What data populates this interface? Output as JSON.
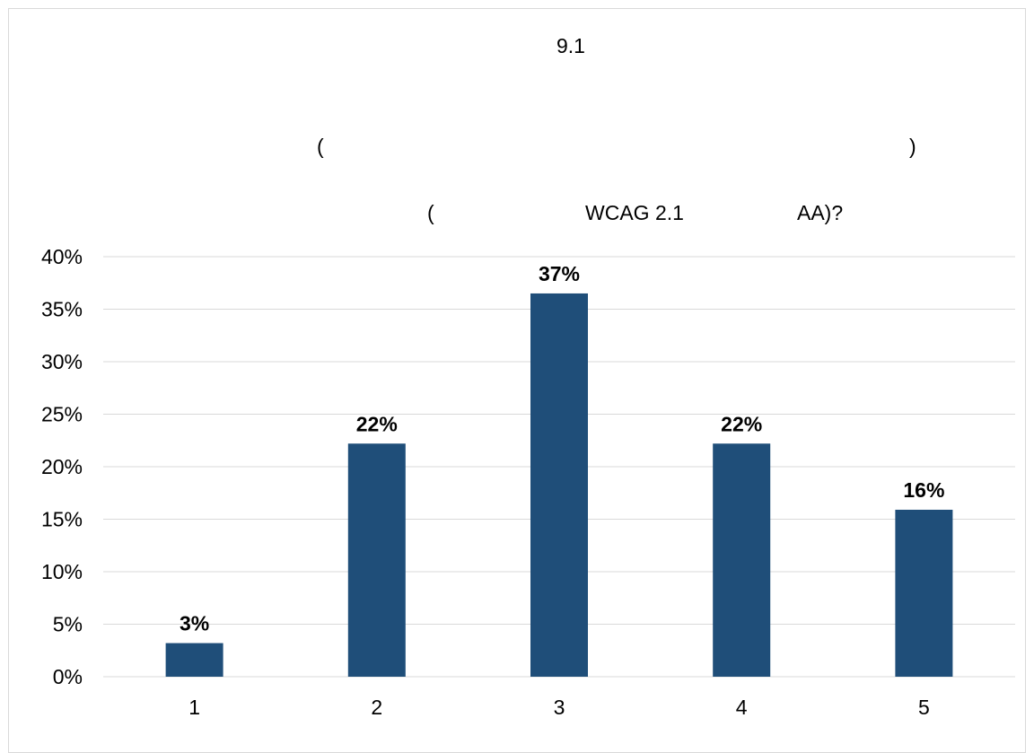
{
  "chart_data": {
    "type": "bar",
    "title": {
      "line1": "9.1",
      "line2_open": "(",
      "line2_close": ")",
      "line3_open": "(",
      "line3_mid": "WCAG 2.1",
      "line3_end": "AA)?"
    },
    "categories": [
      "1",
      "2",
      "3",
      "4",
      "5"
    ],
    "values": [
      3.2,
      22.2,
      36.5,
      22.2,
      15.9
    ],
    "data_labels": [
      "3%",
      "22%",
      "37%",
      "22%",
      "16%"
    ],
    "ylim": [
      0,
      40
    ],
    "yticks": [
      "0%",
      "5%",
      "10%",
      "15%",
      "20%",
      "25%",
      "30%",
      "35%",
      "40%"
    ],
    "grid": true,
    "legend": "none",
    "bar_color": "#1f4e79",
    "grid_color": "#d9d9d9"
  }
}
